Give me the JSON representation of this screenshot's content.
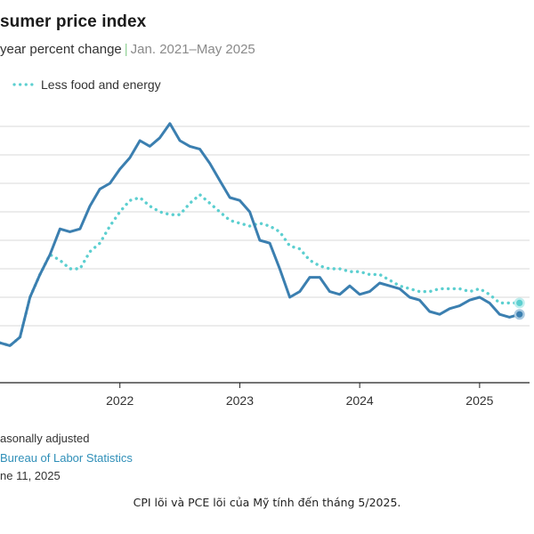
{
  "chart_data": {
    "type": "line",
    "title": "sumer price index",
    "subtitle_lead": "year percent change",
    "subtitle_range": "Jan. 2021–May 2025",
    "xlabel": "",
    "ylabel": "",
    "x_ticks": [
      "2022",
      "2023",
      "2024",
      "2025"
    ],
    "x_tick_values": [
      2022.0,
      2023.0,
      2024.0,
      2025.0
    ],
    "xlim": [
      2021.0,
      2025.4167
    ],
    "ylim": [
      0,
      10
    ],
    "y_gridlines": [
      2.0,
      3.0,
      4.0,
      5.0,
      6.0,
      7.0,
      8.0,
      9.0
    ],
    "grid": true,
    "legend_position": "top-left",
    "series": [
      {
        "name": "",
        "style": "solid",
        "color": "#3b7fb0",
        "x": [
          2021.0,
          2021.083,
          2021.167,
          2021.25,
          2021.333,
          2021.417,
          2021.5,
          2021.583,
          2021.667,
          2021.75,
          2021.833,
          2021.917,
          2022.0,
          2022.083,
          2022.167,
          2022.25,
          2022.333,
          2022.417,
          2022.5,
          2022.583,
          2022.667,
          2022.75,
          2022.833,
          2022.917,
          2023.0,
          2023.083,
          2023.167,
          2023.25,
          2023.333,
          2023.417,
          2023.5,
          2023.583,
          2023.667,
          2023.75,
          2023.833,
          2023.917,
          2024.0,
          2024.083,
          2024.167,
          2024.25,
          2024.333,
          2024.417,
          2024.5,
          2024.583,
          2024.667,
          2024.75,
          2024.833,
          2024.917,
          2025.0,
          2025.083,
          2025.167,
          2025.25,
          2025.333
        ],
        "y": [
          1.4,
          1.3,
          1.6,
          3.0,
          3.8,
          4.5,
          5.4,
          5.3,
          5.4,
          6.2,
          6.8,
          7.0,
          7.5,
          7.9,
          8.5,
          8.3,
          8.6,
          9.1,
          8.5,
          8.3,
          8.2,
          7.7,
          7.1,
          6.5,
          6.4,
          6.0,
          5.0,
          4.9,
          4.0,
          3.0,
          3.2,
          3.7,
          3.7,
          3.2,
          3.1,
          3.4,
          3.1,
          3.2,
          3.5,
          3.4,
          3.3,
          3.0,
          2.9,
          2.5,
          2.4,
          2.6,
          2.7,
          2.9,
          3.0,
          2.8,
          2.4,
          2.3,
          2.4
        ]
      },
      {
        "name": "Less food and energy",
        "style": "dotted",
        "color": "#5ccfd0",
        "x": [
          2021.0,
          2021.083,
          2021.167,
          2021.25,
          2021.333,
          2021.417,
          2021.5,
          2021.583,
          2021.667,
          2021.75,
          2021.833,
          2021.917,
          2022.0,
          2022.083,
          2022.167,
          2022.25,
          2022.333,
          2022.417,
          2022.5,
          2022.583,
          2022.667,
          2022.75,
          2022.833,
          2022.917,
          2023.0,
          2023.083,
          2023.167,
          2023.25,
          2023.333,
          2023.417,
          2023.5,
          2023.583,
          2023.667,
          2023.75,
          2023.833,
          2023.917,
          2024.0,
          2024.083,
          2024.167,
          2024.25,
          2024.333,
          2024.417,
          2024.5,
          2024.583,
          2024.667,
          2024.75,
          2024.833,
          2024.917,
          2025.0,
          2025.083,
          2025.167,
          2025.25,
          2025.333
        ],
        "y": [
          1.4,
          1.3,
          1.6,
          3.0,
          3.8,
          4.5,
          4.3,
          4.0,
          4.0,
          4.6,
          4.9,
          5.5,
          6.0,
          6.4,
          6.5,
          6.2,
          6.0,
          5.9,
          5.9,
          6.3,
          6.6,
          6.3,
          6.0,
          5.7,
          5.6,
          5.5,
          5.6,
          5.5,
          5.3,
          4.8,
          4.7,
          4.3,
          4.1,
          4.0,
          4.0,
          3.9,
          3.9,
          3.8,
          3.8,
          3.6,
          3.4,
          3.3,
          3.2,
          3.2,
          3.3,
          3.3,
          3.3,
          3.2,
          3.3,
          3.1,
          2.8,
          2.8,
          2.8
        ]
      }
    ]
  },
  "footer": {
    "note": "asonally adjusted",
    "source": "Bureau of Labor Statistics",
    "date": "ne 11, 2025"
  },
  "caption": "CPI lõi và PCE lõi của Mỹ tính đến tháng 5/2025."
}
